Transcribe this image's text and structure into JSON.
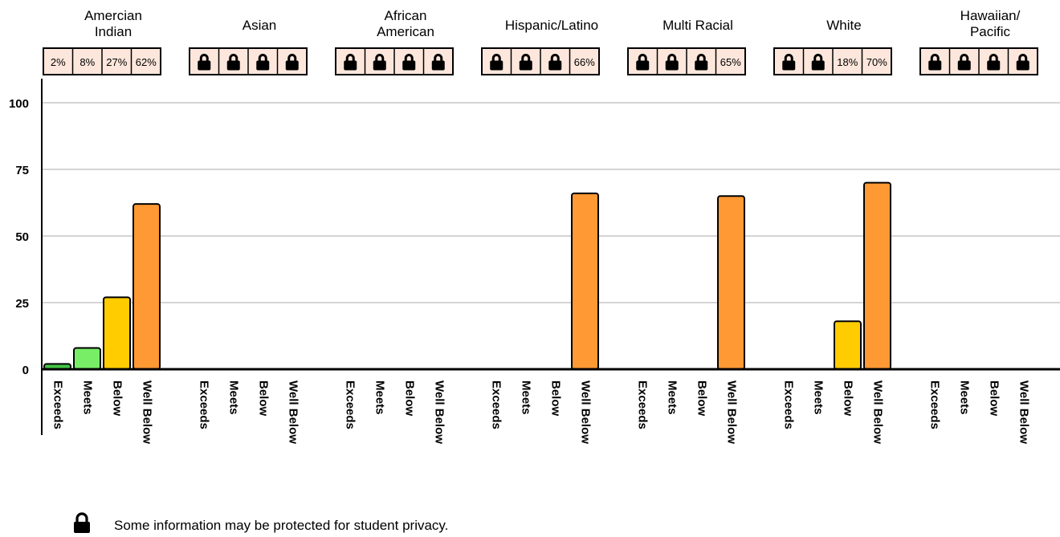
{
  "chart_data": {
    "type": "bar",
    "title": "",
    "xlabel": "",
    "ylabel": "",
    "ylim": [
      0,
      100
    ],
    "yticks": [
      "0",
      "25",
      "50",
      "75",
      "100"
    ],
    "categories": [
      "Exceeds",
      "Meets",
      "Below",
      "Well Below"
    ],
    "groups": [
      {
        "name": "Amercian Indian",
        "name_lines": [
          "Amercian",
          "Indian"
        ],
        "values": [
          2,
          8,
          27,
          62
        ],
        "labels": [
          "2%",
          "8%",
          "27%",
          "62%"
        ]
      },
      {
        "name": "Asian",
        "name_lines": [
          "Asian"
        ],
        "values": [
          null,
          null,
          null,
          null
        ],
        "labels": [
          null,
          null,
          null,
          null
        ]
      },
      {
        "name": "African American",
        "name_lines": [
          "African",
          "American"
        ],
        "values": [
          null,
          null,
          null,
          null
        ],
        "labels": [
          null,
          null,
          null,
          null
        ]
      },
      {
        "name": "Hispanic/Latino",
        "name_lines": [
          "Hispanic/Latino"
        ],
        "values": [
          null,
          null,
          null,
          66
        ],
        "labels": [
          null,
          null,
          null,
          "66%"
        ]
      },
      {
        "name": "Multi Racial",
        "name_lines": [
          "Multi Racial"
        ],
        "values": [
          null,
          null,
          null,
          65
        ],
        "labels": [
          null,
          null,
          null,
          "65%"
        ]
      },
      {
        "name": "White",
        "name_lines": [
          "White"
        ],
        "values": [
          null,
          null,
          18,
          70
        ],
        "labels": [
          null,
          null,
          "18%",
          "70%"
        ]
      },
      {
        "name": "Hawaiian/ Pacific",
        "name_lines": [
          "Hawaiian/",
          "Pacific"
        ],
        "values": [
          null,
          null,
          null,
          null
        ],
        "labels": [
          null,
          null,
          null,
          null
        ]
      }
    ],
    "colors": {
      "Exceeds": "#44c444",
      "Meets": "#77ee66",
      "Below": "#ffcc00",
      "Well Below": "#ff9933",
      "label_box_fill": "#fde7dc",
      "gridline": "#aaaaaa"
    },
    "locked_icon": "lock-icon",
    "grid": true
  },
  "footnote": {
    "icon": "lock-icon",
    "text": "Some information may be protected for student privacy."
  }
}
